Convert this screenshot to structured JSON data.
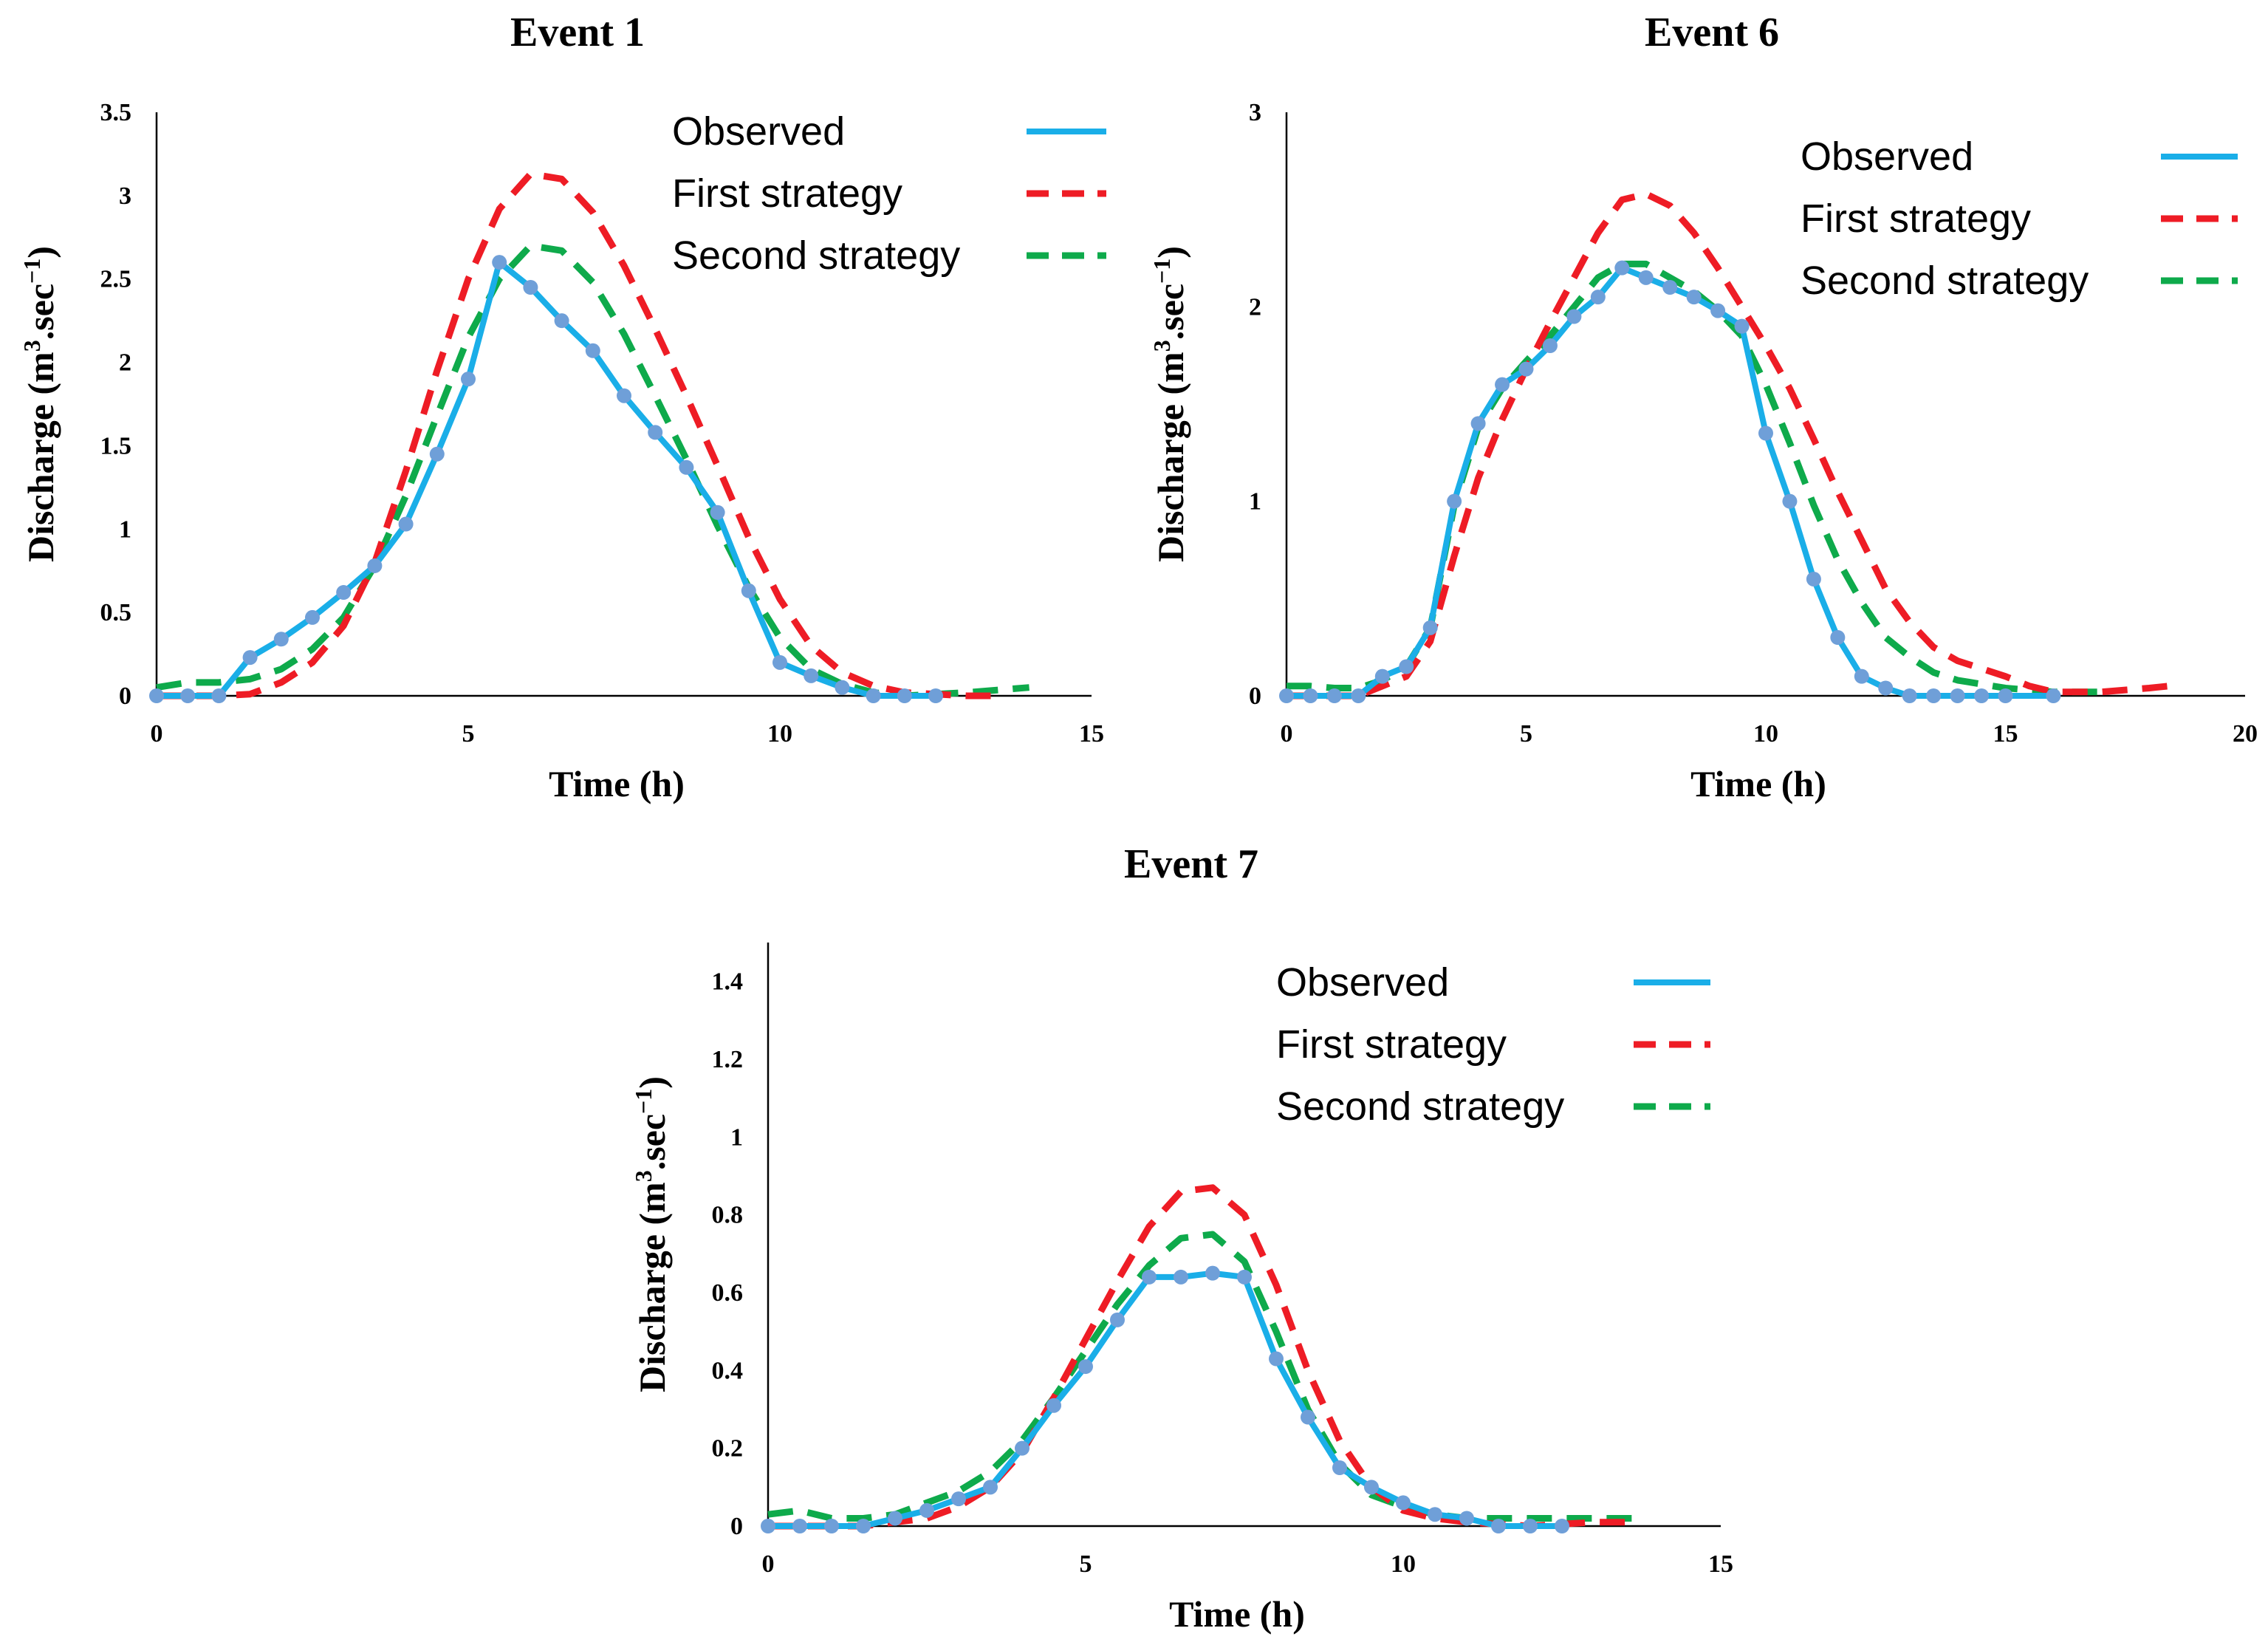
{
  "colors": {
    "observed": "#1aaee8",
    "marker": "#6f9fd8",
    "first": "#ee1c25",
    "second": "#0eaa4b"
  },
  "legend": {
    "observed": "Observed",
    "first": "First strategy",
    "second": "Second strategy"
  },
  "chart_data": [
    {
      "id": "event1",
      "type": "line",
      "title": "Event 1",
      "xlabel": "Time  (h)",
      "ylabel_main": "Discharge  (m",
      "ylabel_sup1": "3",
      "ylabel_mid": ".sec",
      "ylabel_sup2": "−1",
      "ylabel_end": ")",
      "xlim": [
        0,
        15
      ],
      "ylim": [
        0,
        3.5
      ],
      "xticks": [
        0,
        5,
        10,
        15
      ],
      "xtick_labels": [
        "0",
        "5",
        "10",
        "15"
      ],
      "yticks": [
        0,
        0.5,
        1,
        1.5,
        2,
        2.5,
        3,
        3.5
      ],
      "ytick_labels": [
        "0",
        "0.5",
        "1",
        "1.5",
        "2",
        "2.5",
        "3",
        "3.5"
      ],
      "series": [
        {
          "name": "Observed",
          "key": "observed",
          "markers": true,
          "x": [
            0,
            0.5,
            1,
            1.5,
            2,
            2.5,
            3,
            3.5,
            4,
            4.5,
            5,
            5.5,
            6,
            6.5,
            7,
            7.5,
            8,
            8.5,
            9,
            9.5,
            10,
            10.5,
            11,
            11.5,
            12,
            12.5
          ],
          "y": [
            0,
            0,
            0,
            0.23,
            0.34,
            0.47,
            0.62,
            0.78,
            1.03,
            1.45,
            1.9,
            2.6,
            2.45,
            2.25,
            2.07,
            1.8,
            1.58,
            1.37,
            1.1,
            0.63,
            0.2,
            0.12,
            0.05,
            0,
            0,
            0
          ]
        },
        {
          "name": "First strategy",
          "key": "first",
          "markers": false,
          "x": [
            0,
            1,
            1.5,
            2,
            2.5,
            3,
            3.5,
            4,
            4.5,
            5,
            5.5,
            6,
            6.5,
            7,
            7.5,
            8,
            8.5,
            9,
            9.5,
            10,
            10.5,
            11,
            11.5,
            12,
            13,
            13.5
          ],
          "y": [
            0,
            0,
            0.01,
            0.08,
            0.2,
            0.42,
            0.8,
            1.35,
            1.95,
            2.5,
            2.92,
            3.13,
            3.1,
            2.9,
            2.58,
            2.2,
            1.8,
            1.38,
            0.95,
            0.58,
            0.3,
            0.14,
            0.06,
            0.02,
            0,
            0
          ]
        },
        {
          "name": "Second strategy",
          "key": "second",
          "markers": false,
          "x": [
            0,
            0.5,
            1,
            1.5,
            2,
            2.5,
            3,
            3.5,
            4,
            4.5,
            5,
            5.5,
            6,
            6.5,
            7,
            7.5,
            8,
            8.5,
            9,
            9.5,
            10,
            10.5,
            11,
            11.5,
            12,
            13,
            14
          ],
          "y": [
            0.05,
            0.08,
            0.08,
            0.1,
            0.16,
            0.28,
            0.47,
            0.78,
            1.2,
            1.68,
            2.15,
            2.5,
            2.7,
            2.67,
            2.48,
            2.17,
            1.8,
            1.42,
            1.02,
            0.65,
            0.35,
            0.16,
            0.07,
            0.02,
            0,
            0.02,
            0.05
          ]
        }
      ]
    },
    {
      "id": "event6",
      "type": "line",
      "title": "Event 6",
      "xlabel": "Time (h)",
      "ylabel_main": "Discharge  (m",
      "ylabel_sup1": "3",
      "ylabel_mid": ".sec",
      "ylabel_sup2": "−1",
      "ylabel_end": ")",
      "xlim": [
        0,
        20
      ],
      "ylim": [
        0,
        3
      ],
      "xticks": [
        0,
        5,
        10,
        15,
        20
      ],
      "xtick_labels": [
        "0",
        "5",
        "10",
        "15",
        "20"
      ],
      "yticks": [
        0,
        1,
        2,
        3
      ],
      "ytick_labels": [
        "0",
        "1",
        "2",
        "3"
      ],
      "series": [
        {
          "name": "Observed",
          "key": "observed",
          "markers": true,
          "x": [
            0,
            0.5,
            1,
            1.5,
            2,
            2.5,
            3,
            3.5,
            4,
            4.5,
            5,
            5.5,
            6,
            6.5,
            7,
            7.5,
            8,
            8.5,
            9,
            9.5,
            10,
            10.5,
            11,
            11.5,
            12,
            12.5,
            13,
            13.5,
            14,
            14.5,
            15,
            16
          ],
          "y": [
            0,
            0,
            0,
            0,
            0.1,
            0.15,
            0.35,
            1.0,
            1.4,
            1.6,
            1.68,
            1.8,
            1.95,
            2.05,
            2.2,
            2.15,
            2.1,
            2.05,
            1.98,
            1.9,
            1.35,
            1.0,
            0.6,
            0.3,
            0.1,
            0.04,
            0,
            0,
            0,
            0,
            0,
            0
          ]
        },
        {
          "name": "First strategy",
          "key": "first",
          "markers": false,
          "x": [
            0,
            1,
            1.5,
            2,
            2.5,
            3,
            3.5,
            4,
            4.5,
            5,
            5.5,
            6,
            6.5,
            7,
            7.5,
            8,
            8.5,
            9,
            9.5,
            10,
            10.5,
            11,
            11.5,
            12,
            12.5,
            13,
            13.5,
            14,
            14.5,
            15,
            15.5,
            16,
            17,
            18,
            18.4
          ],
          "y": [
            0,
            0,
            0,
            0.05,
            0.1,
            0.28,
            0.72,
            1.12,
            1.42,
            1.68,
            1.92,
            2.15,
            2.38,
            2.55,
            2.58,
            2.52,
            2.38,
            2.2,
            2.0,
            1.8,
            1.58,
            1.32,
            1.05,
            0.8,
            0.55,
            0.38,
            0.25,
            0.18,
            0.14,
            0.1,
            0.05,
            0.02,
            0.02,
            0.04,
            0.05
          ]
        },
        {
          "name": "Second strategy",
          "key": "second",
          "markers": false,
          "x": [
            0,
            0.5,
            1,
            1.5,
            2,
            2.5,
            3,
            3.5,
            4,
            4.5,
            5,
            5.5,
            6,
            6.5,
            7,
            7.5,
            8,
            8.5,
            9,
            9.5,
            10,
            10.5,
            11,
            11.5,
            12,
            12.5,
            13,
            13.5,
            14,
            15,
            16,
            17
          ],
          "y": [
            0.05,
            0.05,
            0.04,
            0.04,
            0.08,
            0.15,
            0.35,
            0.98,
            1.38,
            1.58,
            1.72,
            1.85,
            2.0,
            2.15,
            2.22,
            2.22,
            2.15,
            2.08,
            1.98,
            1.85,
            1.6,
            1.3,
            0.98,
            0.7,
            0.48,
            0.3,
            0.2,
            0.12,
            0.08,
            0.04,
            0.02,
            0.02
          ]
        }
      ]
    },
    {
      "id": "event7",
      "type": "line",
      "title": "Event 7",
      "xlabel": "Time  (h)",
      "ylabel_main": "Discharge  (m",
      "ylabel_sup1": "3",
      "ylabel_mid": ".sec",
      "ylabel_sup2": "−1",
      "ylabel_end": ")",
      "xlim": [
        0,
        15
      ],
      "ylim": [
        0,
        1.5
      ],
      "xticks": [
        0,
        5,
        10,
        15
      ],
      "xtick_labels": [
        "0",
        "5",
        "10",
        "15"
      ],
      "yticks": [
        0,
        0.2,
        0.4,
        0.6,
        0.8,
        1,
        1.2,
        1.4
      ],
      "ytick_labels": [
        "0",
        "0.2",
        "0.4",
        "0.6",
        "0.8",
        "1",
        "1.2",
        "1.4"
      ],
      "series": [
        {
          "name": "Observed",
          "key": "observed",
          "markers": true,
          "x": [
            0,
            0.5,
            1,
            1.5,
            2,
            2.5,
            3,
            3.5,
            4,
            4.5,
            5,
            5.5,
            6,
            6.5,
            7,
            7.5,
            8,
            8.5,
            9,
            9.5,
            10,
            10.5,
            11,
            11.5,
            12,
            12.5
          ],
          "y": [
            0,
            0,
            0,
            0,
            0.02,
            0.04,
            0.07,
            0.1,
            0.2,
            0.31,
            0.41,
            0.53,
            0.64,
            0.64,
            0.65,
            0.64,
            0.43,
            0.28,
            0.15,
            0.1,
            0.06,
            0.03,
            0.02,
            0,
            0,
            0
          ]
        },
        {
          "name": "First strategy",
          "key": "first",
          "markers": false,
          "x": [
            0,
            1,
            1.5,
            2,
            2.5,
            3,
            3.5,
            4,
            4.5,
            5,
            5.5,
            6,
            6.5,
            7,
            7.5,
            8,
            8.5,
            9,
            9.5,
            10,
            10.5,
            11,
            12,
            13,
            13.7
          ],
          "y": [
            0,
            0,
            0,
            0.01,
            0.02,
            0.05,
            0.1,
            0.19,
            0.33,
            0.48,
            0.63,
            0.77,
            0.86,
            0.87,
            0.8,
            0.62,
            0.4,
            0.22,
            0.1,
            0.04,
            0.02,
            0.01,
            0,
            0.01,
            0.01
          ]
        },
        {
          "name": "Second strategy",
          "key": "second",
          "markers": false,
          "x": [
            0,
            0.5,
            1,
            1.5,
            2,
            2.5,
            3,
            3.5,
            4,
            4.5,
            5,
            5.5,
            6,
            6.5,
            7,
            7.5,
            8,
            8.5,
            9,
            9.5,
            10,
            10.5,
            11,
            12,
            13,
            13.7
          ],
          "y": [
            0.03,
            0.04,
            0.02,
            0.02,
            0.03,
            0.06,
            0.09,
            0.14,
            0.22,
            0.33,
            0.45,
            0.57,
            0.67,
            0.74,
            0.75,
            0.68,
            0.5,
            0.3,
            0.16,
            0.08,
            0.05,
            0.03,
            0.02,
            0.02,
            0.02,
            0.02
          ]
        }
      ]
    }
  ]
}
